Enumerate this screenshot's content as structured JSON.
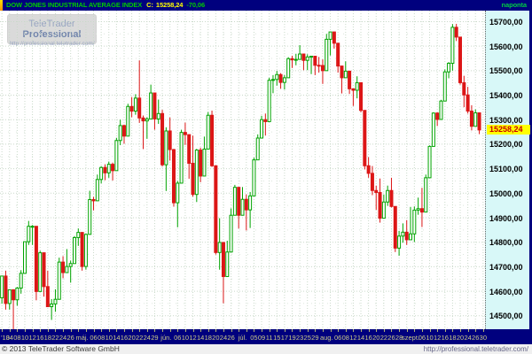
{
  "title_bar": {
    "symbol": "DOW JONES INDUSTRIAL AVERAGE INDEX",
    "close_label": "C:",
    "close_value": "15258,24",
    "change_value": "-70,06",
    "interval": "naponta"
  },
  "watermark": {
    "brand": "TeleTrader",
    "product": "Professional",
    "url": "http://professional.teletrader.com/"
  },
  "footer": {
    "copyright": "© 2013 TeleTrader Software GmbH",
    "url": "http://professional.teletrader.com/"
  },
  "colors": {
    "titlebar_bg": "#00007E",
    "symbol_text": "#00CC00",
    "quote_text": "#FFFF00",
    "candle_up_stroke": "#00A400",
    "candle_up_fill": "#FFFFFF",
    "candle_down": "#DC1616",
    "grid_major": "#C9D9C9",
    "grid_minor": "#DCE6DC",
    "axis_panel_bg": "#D8F8F8",
    "axis_label": "#000000",
    "price_tag_bg": "#FFFF00",
    "price_tag_text": "#C80000",
    "time_label": "#CCCC88"
  },
  "chart_data": {
    "type": "candlestick",
    "title": "DOW JONES INDUSTRIAL AVERAGE INDEX",
    "period": "naponta (daily), ápr–szept 2013",
    "last_price": 15258.24,
    "last_price_label": "15258,24",
    "slots": 127,
    "y_axis": {
      "min": 14445,
      "max": 15745,
      "tick_step": 100,
      "ticks": [
        {
          "v": 15700,
          "label": "15700,00"
        },
        {
          "v": 15600,
          "label": "15600,00"
        },
        {
          "v": 15500,
          "label": "15500,00"
        },
        {
          "v": 15400,
          "label": "15400,00"
        },
        {
          "v": 15300,
          "label": "15300,00"
        },
        {
          "v": 15200,
          "label": "15200,00"
        },
        {
          "v": 15100,
          "label": "15100,00"
        },
        {
          "v": 15000,
          "label": "15000,00"
        },
        {
          "v": 14900,
          "label": "14900,00"
        },
        {
          "v": 14800,
          "label": "14800,00"
        },
        {
          "v": 14700,
          "label": "14700,00"
        },
        {
          "v": 14600,
          "label": "14600,00"
        },
        {
          "v": 14500,
          "label": "14500,00"
        }
      ]
    },
    "x_labels": [
      {
        "slot": 0,
        "text": "'13"
      },
      {
        "slot": 2,
        "text": "04"
      },
      {
        "slot": 4,
        "text": "08"
      },
      {
        "slot": 6,
        "text": "10"
      },
      {
        "slot": 8,
        "text": "12"
      },
      {
        "slot": 10,
        "text": "16"
      },
      {
        "slot": 12,
        "text": "18"
      },
      {
        "slot": 14,
        "text": "22"
      },
      {
        "slot": 16,
        "text": "24"
      },
      {
        "slot": 18,
        "text": "26"
      },
      {
        "slot": 21,
        "text": "máj."
      },
      {
        "slot": 24,
        "text": "06"
      },
      {
        "slot": 26,
        "text": "08"
      },
      {
        "slot": 28,
        "text": "10"
      },
      {
        "slot": 30,
        "text": "14"
      },
      {
        "slot": 32,
        "text": "16"
      },
      {
        "slot": 34,
        "text": "20"
      },
      {
        "slot": 36,
        "text": "22"
      },
      {
        "slot": 38,
        "text": "24"
      },
      {
        "slot": 40,
        "text": "29"
      },
      {
        "slot": 43,
        "text": "jún."
      },
      {
        "slot": 46,
        "text": "06"
      },
      {
        "slot": 48,
        "text": "10"
      },
      {
        "slot": 50,
        "text": "12"
      },
      {
        "slot": 52,
        "text": "14"
      },
      {
        "slot": 54,
        "text": "18"
      },
      {
        "slot": 56,
        "text": "20"
      },
      {
        "slot": 58,
        "text": "24"
      },
      {
        "slot": 60,
        "text": "26"
      },
      {
        "slot": 63,
        "text": "júl."
      },
      {
        "slot": 66,
        "text": "05"
      },
      {
        "slot": 68,
        "text": "09"
      },
      {
        "slot": 70,
        "text": "11"
      },
      {
        "slot": 72,
        "text": "15"
      },
      {
        "slot": 74,
        "text": "17"
      },
      {
        "slot": 76,
        "text": "19"
      },
      {
        "slot": 78,
        "text": "23"
      },
      {
        "slot": 80,
        "text": "25"
      },
      {
        "slot": 82,
        "text": "29"
      },
      {
        "slot": 85,
        "text": "aug."
      },
      {
        "slot": 88,
        "text": "06"
      },
      {
        "slot": 90,
        "text": "08"
      },
      {
        "slot": 92,
        "text": "12"
      },
      {
        "slot": 94,
        "text": "14"
      },
      {
        "slot": 96,
        "text": "16"
      },
      {
        "slot": 98,
        "text": "20"
      },
      {
        "slot": 100,
        "text": "22"
      },
      {
        "slot": 102,
        "text": "26"
      },
      {
        "slot": 104,
        "text": "28"
      },
      {
        "slot": 107,
        "text": "szept."
      },
      {
        "slot": 110,
        "text": "06"
      },
      {
        "slot": 112,
        "text": "10"
      },
      {
        "slot": 114,
        "text": "12"
      },
      {
        "slot": 116,
        "text": "16"
      },
      {
        "slot": 118,
        "text": "18"
      },
      {
        "slot": 120,
        "text": "20"
      },
      {
        "slot": 122,
        "text": "24"
      },
      {
        "slot": 124,
        "text": "26"
      },
      {
        "slot": 126,
        "text": "30"
      }
    ],
    "candles": [
      [
        "04-02",
        14573,
        14662,
        14549,
        14662
      ],
      [
        "04-03",
        14662,
        14684,
        14525,
        14550
      ],
      [
        "04-04",
        14550,
        14606,
        14525,
        14606
      ],
      [
        "04-05",
        14606,
        14608,
        14434,
        14565
      ],
      [
        "04-08",
        14565,
        14617,
        14541,
        14613
      ],
      [
        "04-09",
        14613,
        14686,
        14590,
        14673
      ],
      [
        "04-10",
        14673,
        14803,
        14673,
        14802
      ],
      [
        "04-11",
        14802,
        14887,
        14789,
        14865
      ],
      [
        "04-12",
        14865,
        14870,
        14789,
        14865
      ],
      [
        "04-15",
        14865,
        14865,
        14563,
        14599
      ],
      [
        "04-16",
        14599,
        14765,
        14599,
        14757
      ],
      [
        "04-17",
        14757,
        14757,
        14578,
        14619
      ],
      [
        "04-18",
        14619,
        14684,
        14537,
        14537
      ],
      [
        "04-19",
        14537,
        14568,
        14483,
        14548
      ],
      [
        "04-22",
        14548,
        14608,
        14516,
        14567
      ],
      [
        "04-23",
        14567,
        14737,
        14567,
        14719
      ],
      [
        "04-24",
        14719,
        14743,
        14653,
        14676
      ],
      [
        "04-25",
        14676,
        14772,
        14676,
        14701
      ],
      [
        "04-26",
        14701,
        14725,
        14635,
        14713
      ],
      [
        "04-29",
        14713,
        14825,
        14713,
        14819
      ],
      [
        "04-30",
        14819,
        14856,
        14785,
        14840
      ],
      [
        "05-01",
        14840,
        14840,
        14684,
        14701
      ],
      [
        "05-02",
        14701,
        14836,
        14688,
        14832
      ],
      [
        "05-03",
        14832,
        15010,
        14832,
        14974
      ],
      [
        "05-06",
        14974,
        14985,
        14930,
        14969
      ],
      [
        "05-07",
        14969,
        15076,
        14969,
        15056
      ],
      [
        "05-08",
        15056,
        15110,
        15040,
        15105
      ],
      [
        "05-09",
        15105,
        15118,
        15053,
        15083
      ],
      [
        "05-10",
        15083,
        15129,
        15063,
        15118
      ],
      [
        "05-13",
        15118,
        15125,
        15052,
        15092
      ],
      [
        "05-14",
        15092,
        15226,
        15092,
        15215
      ],
      [
        "05-15",
        15215,
        15300,
        15196,
        15276
      ],
      [
        "05-16",
        15276,
        15280,
        15202,
        15233
      ],
      [
        "05-17",
        15233,
        15365,
        15233,
        15354
      ],
      [
        "05-20",
        15354,
        15392,
        15310,
        15335
      ],
      [
        "05-21",
        15335,
        15404,
        15320,
        15388
      ],
      [
        "05-22",
        15388,
        15542,
        15287,
        15307
      ],
      [
        "05-23",
        15307,
        15317,
        15180,
        15295
      ],
      [
        "05-24",
        15295,
        15310,
        15222,
        15303
      ],
      [
        "05-28",
        15303,
        15443,
        15303,
        15409
      ],
      [
        "05-29",
        15409,
        15409,
        15259,
        15303
      ],
      [
        "05-30",
        15303,
        15382,
        15283,
        15325
      ],
      [
        "05-31",
        15325,
        15340,
        15109,
        15116
      ],
      [
        "06-03",
        15116,
        15269,
        15009,
        15254
      ],
      [
        "06-04",
        15254,
        15309,
        15133,
        15178
      ],
      [
        "06-05",
        15178,
        15181,
        14945,
        14961
      ],
      [
        "06-06",
        14961,
        15050,
        14861,
        15041
      ],
      [
        "06-07",
        15041,
        15259,
        15041,
        15248
      ],
      [
        "06-10",
        15248,
        15288,
        15197,
        15239
      ],
      [
        "06-11",
        15239,
        15239,
        15059,
        15122
      ],
      [
        "06-12",
        15122,
        15235,
        14986,
        14995
      ],
      [
        "06-13",
        14995,
        15181,
        14964,
        15176
      ],
      [
        "06-14",
        15176,
        15186,
        15045,
        15070
      ],
      [
        "06-17",
        15070,
        15231,
        15070,
        15180
      ],
      [
        "06-18",
        15180,
        15331,
        15180,
        15318
      ],
      [
        "06-19",
        15318,
        15337,
        15107,
        15112
      ],
      [
        "06-20",
        15112,
        15112,
        14750,
        14758
      ],
      [
        "06-21",
        14758,
        14898,
        14688,
        14799
      ],
      [
        "06-24",
        14799,
        14799,
        14551,
        14660
      ],
      [
        "06-25",
        14660,
        14806,
        14660,
        14760
      ],
      [
        "06-26",
        14760,
        14938,
        14760,
        14910
      ],
      [
        "06-27",
        14910,
        15034,
        14910,
        15024
      ],
      [
        "06-28",
        15024,
        15024,
        14856,
        14910
      ],
      [
        "07-01",
        14910,
        15025,
        14910,
        14975
      ],
      [
        "07-02",
        14975,
        14995,
        14848,
        14932
      ],
      [
        "07-03",
        14932,
        15005,
        14858,
        14989
      ],
      [
        "07-05",
        14989,
        15145,
        14989,
        15136
      ],
      [
        "07-08",
        15136,
        15240,
        15136,
        15225
      ],
      [
        "07-09",
        15225,
        15316,
        15225,
        15300
      ],
      [
        "07-10",
        15300,
        15325,
        15235,
        15292
      ],
      [
        "07-11",
        15292,
        15471,
        15292,
        15461
      ],
      [
        "07-12",
        15461,
        15482,
        15408,
        15464
      ],
      [
        "07-15",
        15464,
        15499,
        15439,
        15484
      ],
      [
        "07-16",
        15484,
        15490,
        15426,
        15452
      ],
      [
        "07-17",
        15452,
        15482,
        15423,
        15471
      ],
      [
        "07-18",
        15471,
        15555,
        15471,
        15549
      ],
      [
        "07-19",
        15549,
        15561,
        15511,
        15544
      ],
      [
        "07-22",
        15544,
        15569,
        15522,
        15546
      ],
      [
        "07-23",
        15546,
        15604,
        15546,
        15568
      ],
      [
        "07-24",
        15568,
        15568,
        15502,
        15542
      ],
      [
        "07-25",
        15542,
        15567,
        15502,
        15556
      ],
      [
        "07-26",
        15556,
        15559,
        15486,
        15559
      ],
      [
        "07-29",
        15559,
        15559,
        15482,
        15522
      ],
      [
        "07-30",
        15522,
        15556,
        15492,
        15521
      ],
      [
        "07-31",
        15521,
        15546,
        15446,
        15500
      ],
      [
        "08-01",
        15500,
        15650,
        15500,
        15628
      ],
      [
        "08-02",
        15628,
        15658,
        15562,
        15658
      ],
      [
        "08-05",
        15658,
        15658,
        15590,
        15612
      ],
      [
        "08-06",
        15612,
        15612,
        15492,
        15519
      ],
      [
        "08-07",
        15519,
        15519,
        15407,
        15471
      ],
      [
        "08-08",
        15471,
        15538,
        15471,
        15498
      ],
      [
        "08-09",
        15498,
        15498,
        15405,
        15426
      ],
      [
        "08-12",
        15426,
        15426,
        15356,
        15420
      ],
      [
        "08-13",
        15420,
        15477,
        15387,
        15451
      ],
      [
        "08-14",
        15451,
        15451,
        15330,
        15338
      ],
      [
        "08-15",
        15338,
        15338,
        15097,
        15112
      ],
      [
        "08-16",
        15112,
        15147,
        15063,
        15081
      ],
      [
        "08-19",
        15081,
        15111,
        14992,
        15011
      ],
      [
        "08-20",
        15011,
        15031,
        14932,
        15003
      ],
      [
        "08-21",
        15003,
        15060,
        14880,
        14898
      ],
      [
        "08-22",
        14898,
        14994,
        14898,
        14964
      ],
      [
        "08-23",
        14964,
        15031,
        14948,
        15011
      ],
      [
        "08-26",
        15011,
        15063,
        14942,
        14946
      ],
      [
        "08-27",
        14946,
        14946,
        14760,
        14776
      ],
      [
        "08-28",
        14776,
        14846,
        14745,
        14825
      ],
      [
        "08-29",
        14825,
        14877,
        14798,
        14841
      ],
      [
        "08-30",
        14841,
        14890,
        14789,
        14810
      ],
      [
        "09-03",
        14810,
        14944,
        14810,
        14834
      ],
      [
        "09-04",
        14834,
        14946,
        14801,
        14931
      ],
      [
        "09-05",
        14931,
        14982,
        14912,
        14937
      ],
      [
        "09-06",
        14937,
        15022,
        14862,
        14923
      ],
      [
        "09-09",
        14923,
        15076,
        14923,
        15063
      ],
      [
        "09-10",
        15063,
        15195,
        15063,
        15191
      ],
      [
        "09-11",
        15191,
        15330,
        15191,
        15327
      ],
      [
        "09-12",
        15327,
        15330,
        15274,
        15301
      ],
      [
        "09-13",
        15301,
        15381,
        15301,
        15376
      ],
      [
        "09-16",
        15376,
        15505,
        15376,
        15495
      ],
      [
        "09-17",
        15495,
        15535,
        15469,
        15530
      ],
      [
        "09-18",
        15530,
        15690,
        15500,
        15677
      ],
      [
        "09-19",
        15677,
        15691,
        15621,
        15637
      ],
      [
        "09-20",
        15637,
        15637,
        15443,
        15451
      ],
      [
        "09-23",
        15451,
        15479,
        15351,
        15401
      ],
      [
        "09-24",
        15401,
        15434,
        15325,
        15335
      ],
      [
        "09-25",
        15335,
        15359,
        15256,
        15273
      ],
      [
        "09-26",
        15273,
        15342,
        15273,
        15328
      ],
      [
        "09-27",
        15328,
        15328,
        15241,
        15258
      ]
    ]
  }
}
